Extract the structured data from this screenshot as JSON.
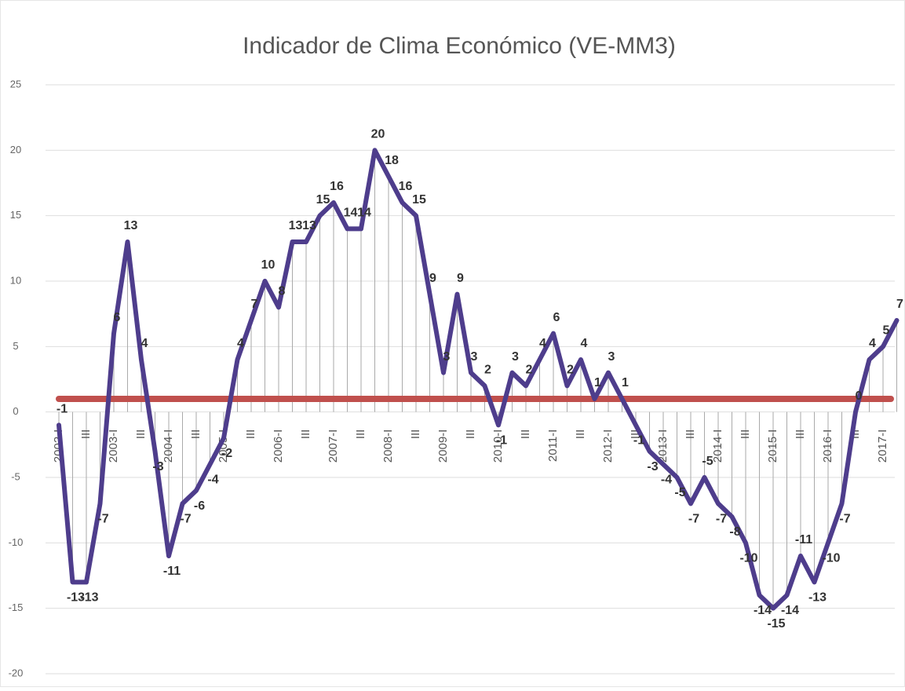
{
  "chart_data": {
    "type": "line",
    "title": "Indicador de Clima Económico (VE-MM3)",
    "categories": [
      "2002-I",
      null,
      "III",
      null,
      "2003-I",
      null,
      "III",
      null,
      "2004-I",
      null,
      "III",
      null,
      "2005-I",
      null,
      "III",
      null,
      "2006-I",
      null,
      "III",
      null,
      "2007-I",
      null,
      "III",
      null,
      "2008-I",
      null,
      "III",
      null,
      "2009-I",
      null,
      "III",
      null,
      "2010-I",
      null,
      "III",
      null,
      "2011-I",
      null,
      "III",
      null,
      "2012-I",
      null,
      "III",
      null,
      "2013-I",
      null,
      "III",
      null,
      "2014-I",
      null,
      "III",
      null,
      "2015-I",
      null,
      "III",
      null,
      "2016-I",
      null,
      "III",
      null,
      "2017-I",
      null
    ],
    "series": [
      {
        "color": "#4e3d8c",
        "values": [
          -1,
          -13,
          -13,
          -7,
          6,
          13,
          4,
          -3,
          -11,
          -7,
          -6,
          -4,
          -2,
          4,
          7,
          10,
          8,
          13,
          13,
          15,
          16,
          14,
          14,
          20,
          18,
          16,
          15,
          9,
          3,
          9,
          3,
          2,
          -1,
          3,
          2,
          4,
          6,
          2,
          4,
          1,
          3,
          1,
          -1,
          -3,
          -4,
          -5,
          -7,
          -5,
          -7,
          -8,
          -10,
          -14,
          -15,
          -14,
          -11,
          -13,
          -10,
          -7,
          0,
          4,
          5,
          7
        ]
      }
    ],
    "reference_line": {
      "value": 1,
      "color": "#c0504d"
    },
    "ylim": [
      -20,
      25
    ],
    "yticks": [
      -20,
      -15,
      -10,
      -5,
      0,
      5,
      10,
      15,
      20,
      25
    ],
    "grid": true
  }
}
